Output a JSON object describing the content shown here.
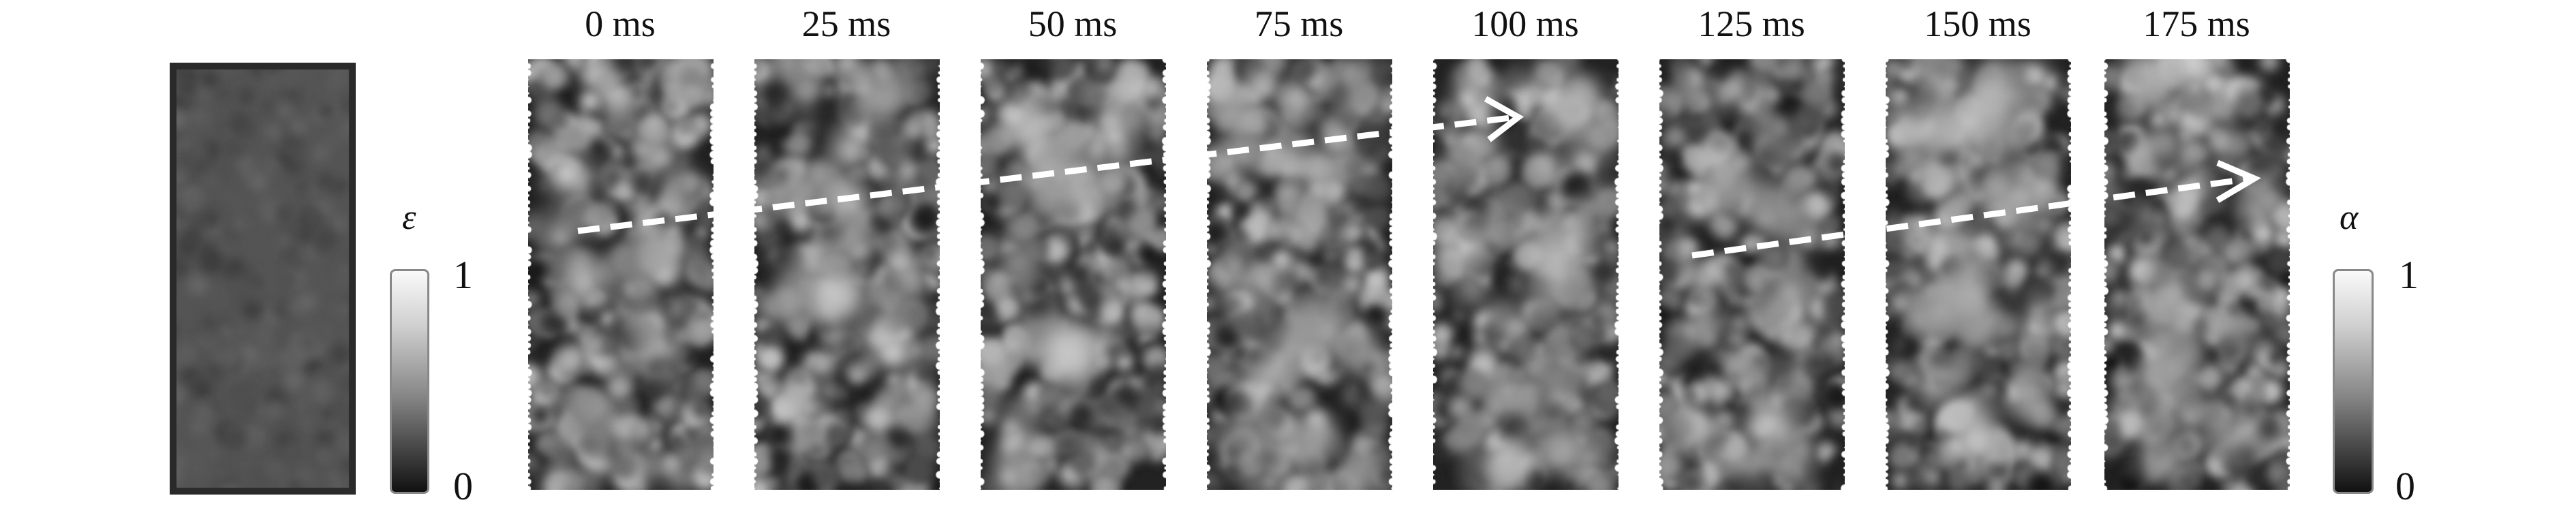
{
  "reference_panel": {
    "label": ""
  },
  "colorbar_left": {
    "symbol": "ε",
    "max_label": "1",
    "min_label": "0",
    "range": [
      0,
      1
    ]
  },
  "colorbar_right": {
    "symbol": "α",
    "max_label": "1",
    "min_label": "0",
    "range": [
      0,
      1
    ]
  },
  "frames": [
    {
      "label": "0 ms"
    },
    {
      "label": "25 ms"
    },
    {
      "label": "50 ms"
    },
    {
      "label": "75 ms"
    },
    {
      "label": "100 ms"
    },
    {
      "label": "125 ms"
    },
    {
      "label": "150 ms"
    },
    {
      "label": "175 ms"
    }
  ],
  "arrows": [
    {
      "description_color": "#ffffff",
      "style": "dashed"
    },
    {
      "description_color": "#ffffff",
      "style": "dashed"
    }
  ]
}
